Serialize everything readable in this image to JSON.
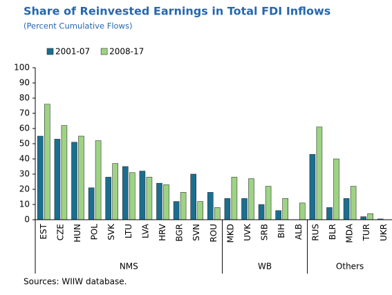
{
  "chart_data": {
    "type": "bar",
    "title": "Share of Reinvested Earnings in Total FDI Inflows",
    "subtitle": "(Percent Cumulative Flows)",
    "source": "Sources: WIIW database.",
    "categories": [
      "EST",
      "CZE",
      "HUN",
      "POL",
      "SVK",
      "LTU",
      "LVA",
      "HRV",
      "BGR",
      "SVN",
      "ROU",
      "MKD",
      "UVK",
      "SRB",
      "BIH",
      "ALB",
      "RUS",
      "BLR",
      "MDA",
      "TUR",
      "UKR"
    ],
    "groups": [
      {
        "name": "NMS",
        "size": 11
      },
      {
        "name": "WB",
        "size": 5
      },
      {
        "name": "Others",
        "size": 5
      }
    ],
    "series": [
      {
        "name": "2001-07",
        "color": "#1a6f8f",
        "values": [
          55,
          53,
          51,
          21,
          28,
          35,
          32,
          24,
          12,
          30,
          18,
          14,
          14,
          10,
          6,
          null,
          43,
          8,
          14,
          2,
          0.5
        ]
      },
      {
        "name": "2008-17",
        "color": "#9dd384",
        "values": [
          76,
          62,
          55,
          52,
          37,
          31,
          28,
          23,
          18,
          12,
          8,
          28,
          27,
          22,
          14,
          11,
          61,
          40,
          22,
          4,
          null
        ]
      }
    ],
    "ylim": [
      0,
      100
    ],
    "yticks": [
      0,
      10,
      20,
      30,
      40,
      50,
      60,
      70,
      80,
      90,
      100
    ],
    "legend": "top-left"
  }
}
